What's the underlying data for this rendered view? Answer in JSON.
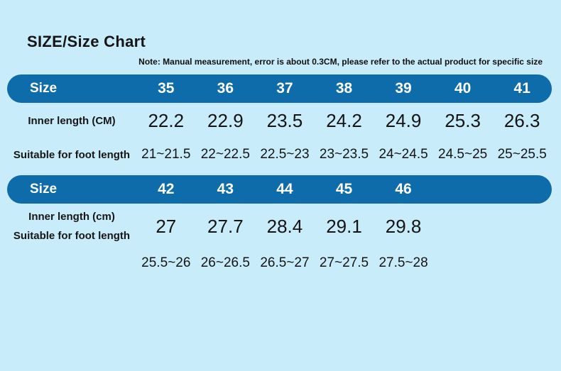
{
  "page": {
    "title": "SIZE/Size Chart",
    "note": "Note: Manual measurement, error is about 0.3CM, please refer to the actual product for specific size"
  },
  "colors": {
    "background": "#c9ecfb",
    "header_bar": "#0f6cab",
    "header_text": "#ffffff",
    "body_text": "#1a1a1a"
  },
  "sections": [
    {
      "header_label": "Size",
      "sizes": [
        "35",
        "36",
        "37",
        "38",
        "39",
        "40",
        "41"
      ],
      "inner_length_label": "Inner length (CM)",
      "inner_lengths": [
        "22.2",
        "22.9",
        "23.5",
        "24.2",
        "24.9",
        "25.3",
        "26.3"
      ],
      "foot_length_label": "Suitable for foot length",
      "foot_lengths": [
        "21~21.5",
        "22~22.5",
        "22.5~23",
        "23~23.5",
        "24~24.5",
        "24.5~25",
        "25~25.5"
      ]
    },
    {
      "header_label": "Size",
      "sizes": [
        "42",
        "43",
        "44",
        "45",
        "46"
      ],
      "inner_length_label": "Inner length (cm)",
      "inner_lengths": [
        "27",
        "27.7",
        "28.4",
        "29.1",
        "29.8"
      ],
      "foot_length_label": "Suitable for foot length",
      "foot_lengths": [
        "25.5~26",
        "26~26.5",
        "26.5~27",
        "27~27.5",
        "27.5~28"
      ]
    }
  ],
  "chart_data": {
    "type": "table",
    "title": "SIZE/Size Chart",
    "note": "Note: Manual measurement, error is about 0.3CM, please refer to the actual product for specific size",
    "tables": [
      {
        "columns": [
          "Size",
          "35",
          "36",
          "37",
          "38",
          "39",
          "40",
          "41"
        ],
        "rows": [
          [
            "Inner length (CM)",
            "22.2",
            "22.9",
            "23.5",
            "24.2",
            "24.9",
            "25.3",
            "26.3"
          ],
          [
            "Suitable for foot length",
            "21~21.5",
            "22~22.5",
            "22.5~23",
            "23~23.5",
            "24~24.5",
            "24.5~25",
            "25~25.5"
          ]
        ]
      },
      {
        "columns": [
          "Size",
          "42",
          "43",
          "44",
          "45",
          "46"
        ],
        "rows": [
          [
            "Inner length (cm)",
            "27",
            "27.7",
            "28.4",
            "29.1",
            "29.8"
          ],
          [
            "Suitable for foot length",
            "25.5~26",
            "26~26.5",
            "26.5~27",
            "27~27.5",
            "27.5~28"
          ]
        ]
      }
    ]
  }
}
